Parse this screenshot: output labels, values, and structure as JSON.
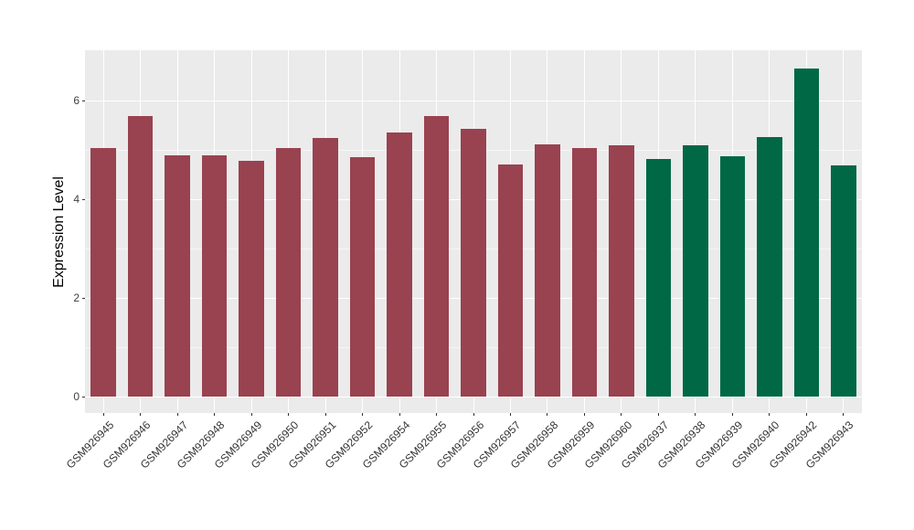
{
  "chart_data": {
    "type": "bar",
    "title": "",
    "xlabel": "",
    "ylabel": "Expression Level",
    "categories": [
      "GSM926945",
      "GSM926946",
      "GSM926947",
      "GSM926948",
      "GSM926949",
      "GSM926950",
      "GSM926951",
      "GSM926952",
      "GSM926954",
      "GSM926955",
      "GSM926956",
      "GSM926957",
      "GSM926958",
      "GSM926959",
      "GSM926960",
      "GSM926937",
      "GSM926938",
      "GSM926939",
      "GSM926940",
      "GSM926942",
      "GSM926943"
    ],
    "values": [
      5.03,
      5.68,
      4.88,
      4.88,
      4.76,
      5.02,
      5.24,
      4.85,
      5.34,
      5.68,
      5.42,
      4.69,
      5.11,
      5.02,
      5.08,
      4.8,
      5.08,
      4.86,
      5.25,
      6.64,
      4.68
    ],
    "bar_groups": [
      "red",
      "red",
      "red",
      "red",
      "red",
      "red",
      "red",
      "red",
      "red",
      "red",
      "red",
      "red",
      "red",
      "red",
      "red",
      "green",
      "green",
      "green",
      "green",
      "green",
      "green"
    ],
    "group_colors": {
      "red": "#994250",
      "green": "#006845"
    },
    "yticks": [
      0,
      2,
      4,
      6
    ],
    "minor_ticks": [
      1,
      3,
      5
    ],
    "ylim": [
      -0.34,
      6.97
    ],
    "grid": true,
    "legend": "none",
    "panel_bg": "#EBEBEB",
    "grid_color": "#FFFFFF",
    "x_label_angle": 45
  }
}
